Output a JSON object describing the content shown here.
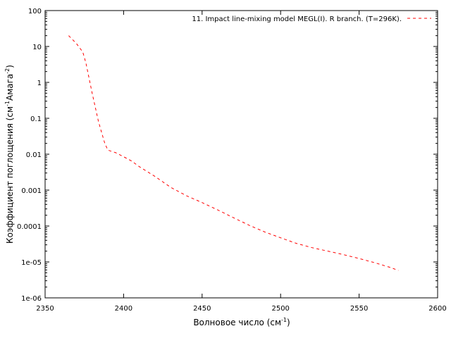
{
  "chart_data": {
    "type": "line",
    "title": "",
    "xlabel_text": "Волновое число (см",
    "xlabel_sup": "-1",
    "xlabel_end": ")",
    "ylabel_text": "Коэффициент поглощения (см",
    "ylabel_sup1": "-1",
    "ylabel_mid": "Амага",
    "ylabel_sup2": "-2",
    "ylabel_end": ")",
    "xlim": [
      2350,
      2600
    ],
    "ylim": [
      1e-06,
      100
    ],
    "yscale": "log",
    "grid": false,
    "legend_position": "top-right",
    "x_ticks": [
      2350,
      2400,
      2450,
      2500,
      2550,
      2600
    ],
    "x_tick_labels": [
      "2350",
      "2400",
      "2450",
      "2500",
      "2550",
      "2600"
    ],
    "y_ticks": [
      1e-06,
      1e-05,
      0.0001,
      0.001,
      0.01,
      0.1,
      1,
      10,
      100
    ],
    "y_tick_labels": [
      "1e-06",
      "1e-05",
      "0.0001",
      "0.001",
      "0.01",
      "0.1",
      "1",
      "10",
      "100"
    ],
    "series": [
      {
        "name": "11. Impact line-mixing model MEGL(I). R branch. (T=296K).",
        "color": "#ff0000",
        "style": "dashed",
        "x": [
          2365,
          2370,
          2374,
          2376,
          2380,
          2384,
          2388,
          2390,
          2395,
          2400,
          2405,
          2410,
          2420,
          2430,
          2440,
          2450,
          2460,
          2470,
          2480,
          2490,
          2500,
          2510,
          2520,
          2530,
          2540,
          2550,
          2560,
          2570,
          2575
        ],
        "y": [
          20,
          12,
          7,
          3.5,
          0.5,
          0.08,
          0.02,
          0.013,
          0.011,
          0.0085,
          0.0065,
          0.0045,
          0.0024,
          0.0012,
          0.0007,
          0.00045,
          0.00028,
          0.00017,
          0.000105,
          6.8e-05,
          4.7e-05,
          3.3e-05,
          2.5e-05,
          2e-05,
          1.6e-05,
          1.25e-05,
          9.5e-06,
          7e-06,
          5.8e-06
        ]
      }
    ]
  }
}
